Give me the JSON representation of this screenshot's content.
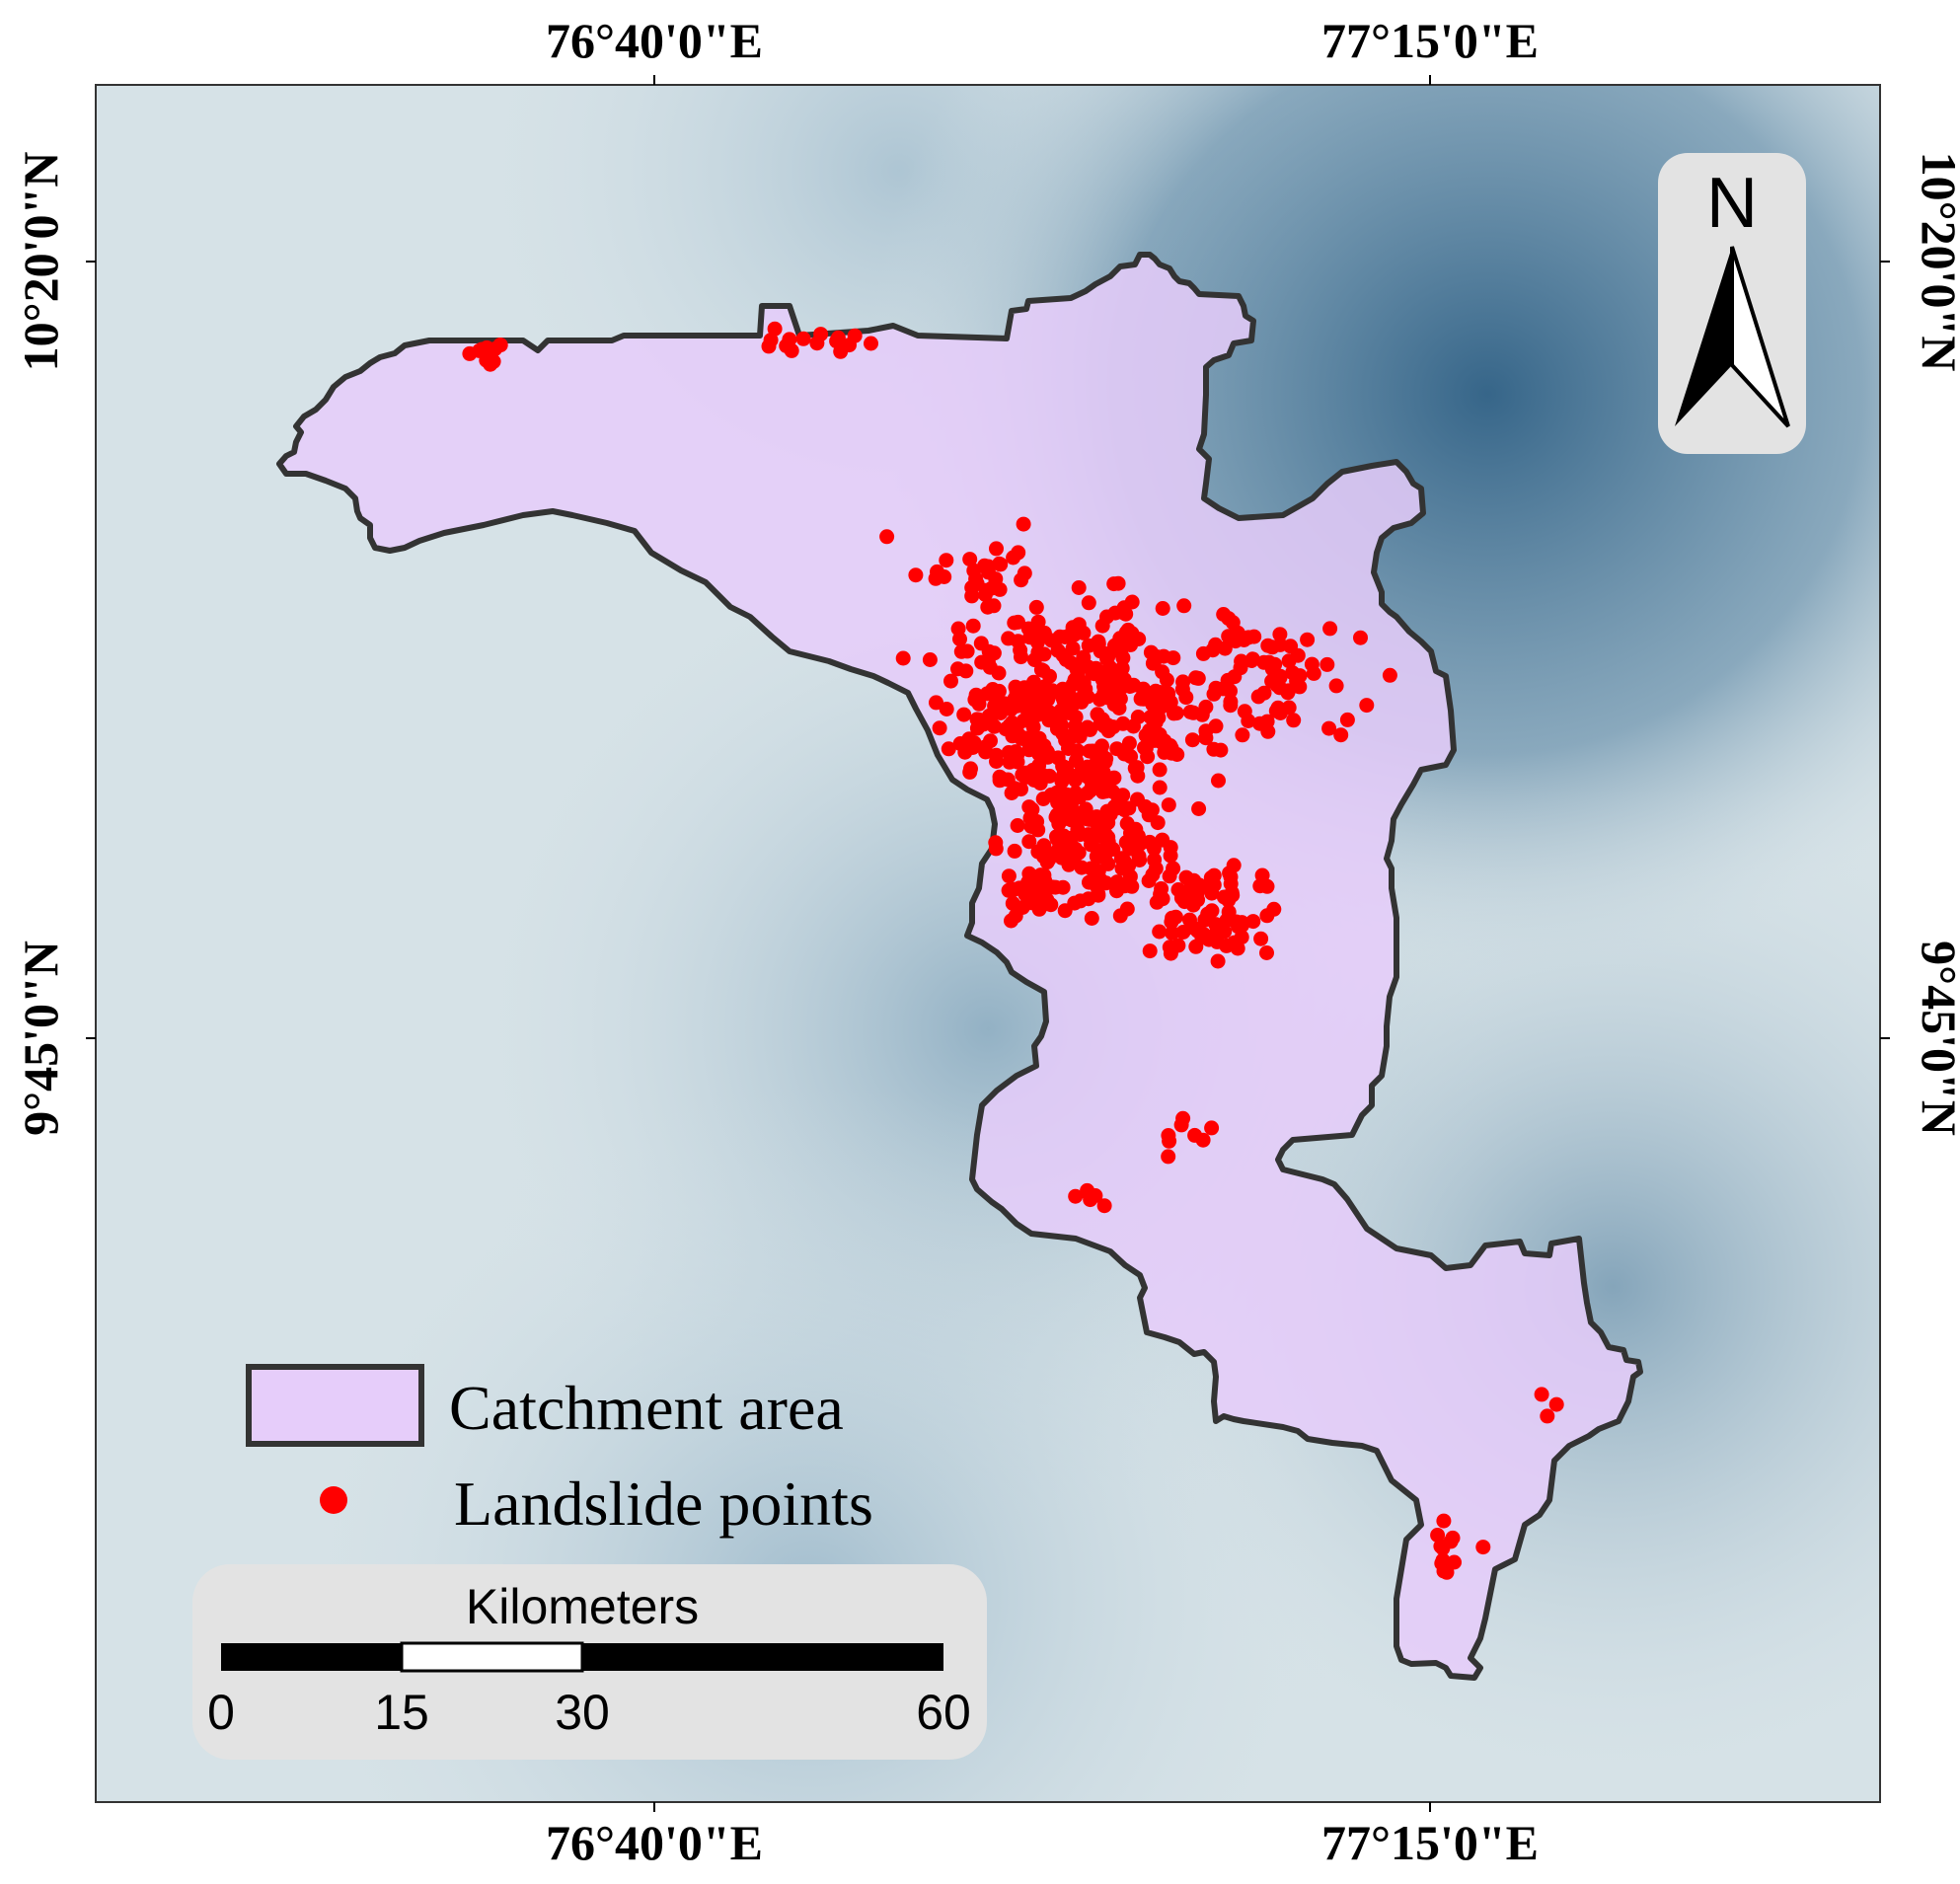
{
  "map": {
    "top_axis_labels": [
      "76°40'0\"E",
      "77°15'0\"E"
    ],
    "bottom_axis_labels": [
      "76°40'0\"E",
      "77°15'0\"E"
    ],
    "left_axis_labels": [
      "10°20'0\"N",
      "9°45'0\"N"
    ],
    "right_axis_labels": [
      "10°20'0\"N",
      "9°45'0\"N"
    ],
    "colors": {
      "background_light": "#d6e2e7",
      "background_dark": "#2e5f84",
      "catchment_fill": "#e6cdfa",
      "catchment_stroke": "#333333",
      "landslide_point": "#ff0000"
    }
  },
  "north_arrow": {
    "label": "N"
  },
  "legend": {
    "items": [
      {
        "label": "Catchment area",
        "symbol": "polygon"
      },
      {
        "label": "Landslide points",
        "symbol": "point"
      }
    ]
  },
  "scale_bar": {
    "title": "Kilometers",
    "ticks": [
      "0",
      "15",
      "30",
      "60"
    ]
  }
}
